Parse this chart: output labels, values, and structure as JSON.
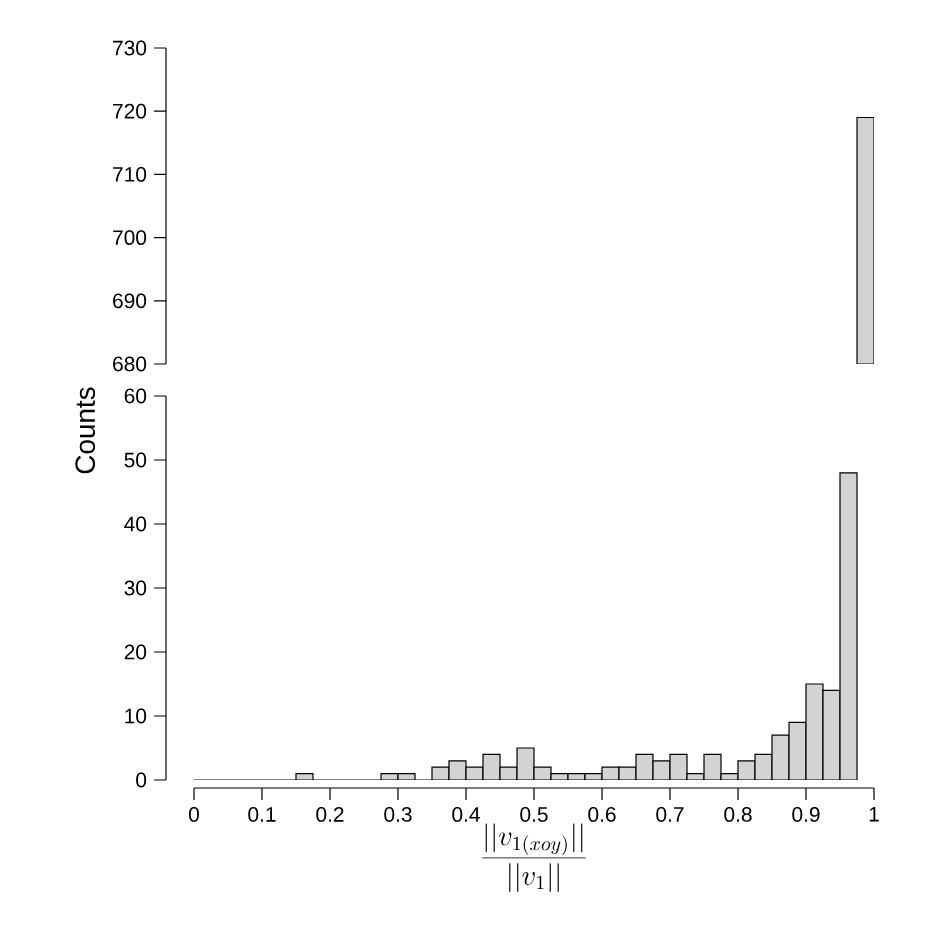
{
  "chart_data": [
    {
      "type": "histogram",
      "bins": [
        0,
        0.025,
        0.05,
        0.075,
        0.1,
        0.125,
        0.15,
        0.175,
        0.2,
        0.225,
        0.25,
        0.275,
        0.3,
        0.325,
        0.35,
        0.375,
        0.4,
        0.425,
        0.45,
        0.475,
        0.5,
        0.525,
        0.55,
        0.575,
        0.6,
        0.625,
        0.65,
        0.675,
        0.7,
        0.725,
        0.75,
        0.775,
        0.8,
        0.825,
        0.85,
        0.875,
        0.9,
        0.925,
        0.95,
        0.975,
        1
      ],
      "values": [
        null,
        null,
        null,
        null,
        null,
        null,
        null,
        null,
        null,
        null,
        null,
        null,
        null,
        null,
        null,
        null,
        null,
        null,
        null,
        null,
        null,
        null,
        null,
        null,
        null,
        null,
        null,
        null,
        null,
        null,
        null,
        null,
        null,
        null,
        null,
        null,
        null,
        null,
        null,
        719
      ],
      "color": "#d3d3d3",
      "xlim": [
        0,
        1
      ],
      "ylim": [
        680,
        730
      ],
      "yticks": [
        680,
        690,
        700,
        710,
        720,
        730
      ],
      "tick_labels": "y"
    },
    {
      "type": "histogram",
      "bins": [
        0,
        0.025,
        0.05,
        0.075,
        0.1,
        0.125,
        0.15,
        0.175,
        0.2,
        0.225,
        0.25,
        0.275,
        0.3,
        0.325,
        0.35,
        0.375,
        0.4,
        0.425,
        0.45,
        0.475,
        0.5,
        0.525,
        0.55,
        0.575,
        0.6,
        0.625,
        0.65,
        0.675,
        0.7,
        0.725,
        0.75,
        0.775,
        0.8,
        0.825,
        0.85,
        0.875,
        0.9,
        0.925,
        0.95,
        0.975,
        1
      ],
      "values": [
        0,
        0,
        0,
        0,
        0,
        0,
        1,
        0,
        0,
        0,
        0,
        1,
        1,
        0,
        2,
        3,
        2,
        4,
        2,
        5,
        2,
        1,
        1,
        1,
        2,
        2,
        4,
        3,
        4,
        1,
        4,
        1,
        3,
        4,
        7,
        9,
        15,
        14,
        48,
        null
      ],
      "color": "#d3d3d3",
      "xlim": [
        0,
        1
      ],
      "ylim": [
        0,
        60
      ],
      "xticks": [
        0,
        0.1,
        0.2,
        0.3,
        0.4,
        0.5,
        0.6,
        0.7,
        0.8,
        0.9,
        1
      ],
      "yticks": [
        0,
        10,
        20,
        30,
        40,
        50,
        60
      ],
      "xlabel": "\\frac{||v_{1(xoy)}||}{||v_1||}",
      "ylabel": "Counts"
    }
  ]
}
